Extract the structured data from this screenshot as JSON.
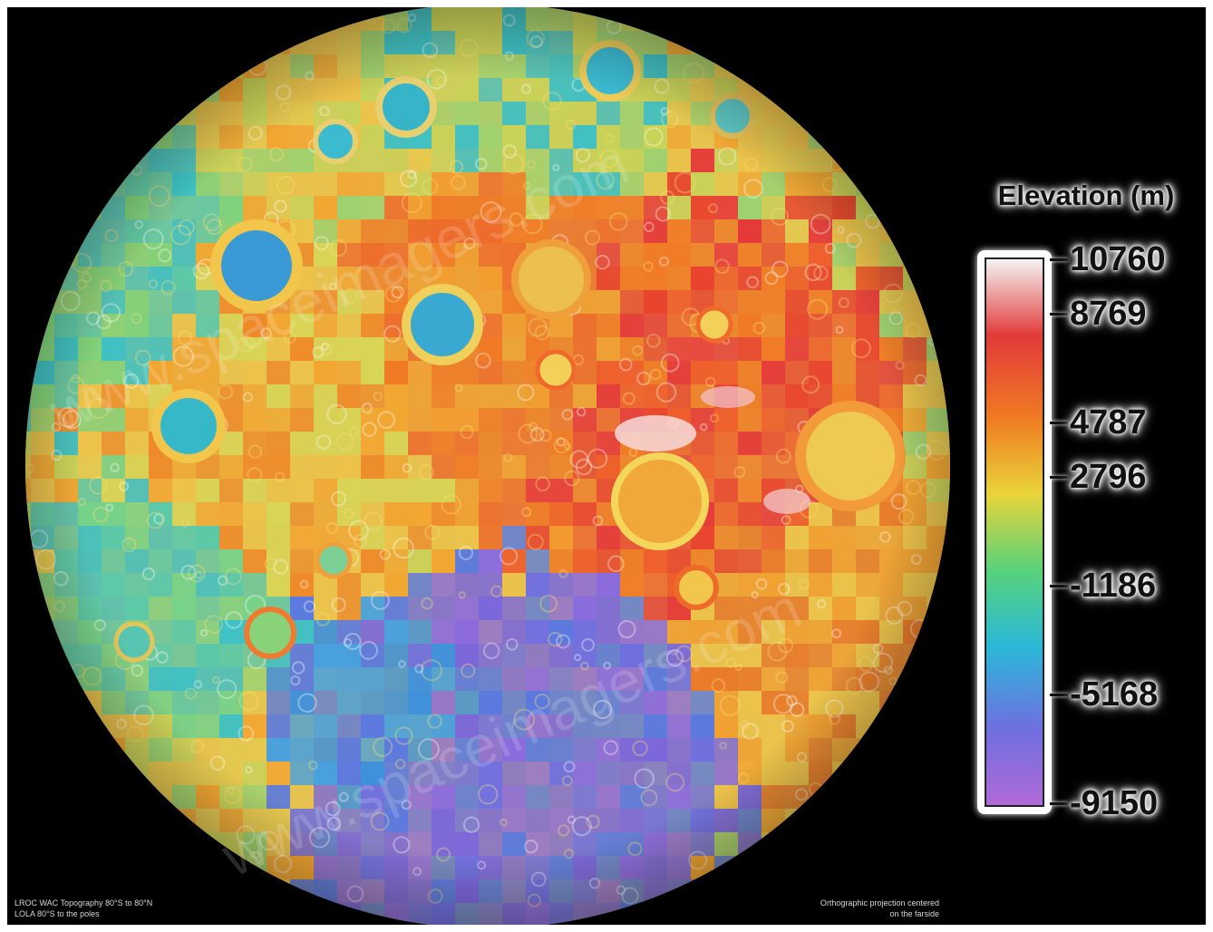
{
  "map": {
    "legend_title": "Elevation (m)",
    "legend_ticks": [
      {
        "label": "10760",
        "value": 10760
      },
      {
        "label": "8769",
        "value": 8769
      },
      {
        "label": "4787",
        "value": 4787
      },
      {
        "label": "2796",
        "value": 2796
      },
      {
        "label": "-1186",
        "value": -1186
      },
      {
        "label": "-5168",
        "value": -5168
      },
      {
        "label": "-9150",
        "value": -9150
      }
    ],
    "color_stops": [
      "#f4f4f4",
      "#e23a3a",
      "#f07a22",
      "#e9d43a",
      "#58d27a",
      "#2ab8d8",
      "#6f6fe0",
      "#b06ad8"
    ],
    "caption_left_1": "LROC WAC Topography 80°S to 80°N",
    "caption_left_2": "LOLA 80°S to the poles",
    "caption_right_1": "Orthographic projection centered",
    "caption_right_2": "on the farside"
  }
}
